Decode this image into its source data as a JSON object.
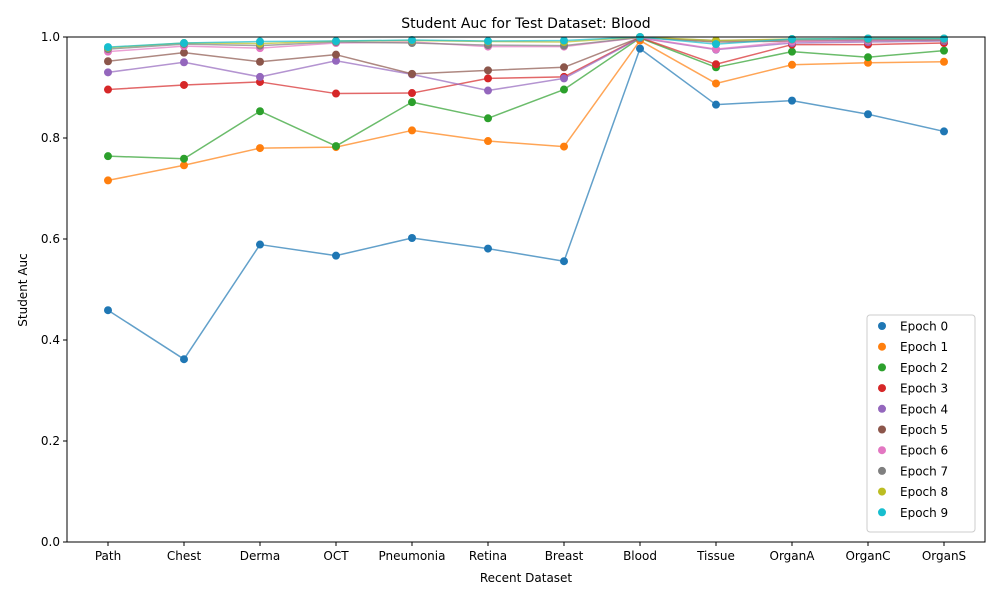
{
  "chart_data": {
    "type": "line",
    "title": "Student Auc for Test Dataset: Blood",
    "xlabel": "Recent Dataset",
    "ylabel": "Student Auc",
    "ylim": [
      0.0,
      1.0
    ],
    "yticks": [
      "0.0",
      "0.2",
      "0.4",
      "0.6",
      "0.8",
      "1.0"
    ],
    "categories": [
      "Path",
      "Chest",
      "Derma",
      "OCT",
      "Pneumonia",
      "Retina",
      "Breast",
      "Blood",
      "Tissue",
      "OrganA",
      "OrganC",
      "OrganS"
    ],
    "grid": false,
    "legend_position": "lower right",
    "series": [
      {
        "name": "Epoch 0",
        "color": "#1f77b4",
        "values": [
          0.459,
          0.362,
          0.589,
          0.567,
          0.602,
          0.581,
          0.556,
          0.977,
          0.866,
          0.874,
          0.847,
          0.813
        ]
      },
      {
        "name": "Epoch 1",
        "color": "#ff7f0e",
        "values": [
          0.716,
          0.746,
          0.78,
          0.782,
          0.815,
          0.794,
          0.783,
          0.993,
          0.908,
          0.945,
          0.949,
          0.951
        ]
      },
      {
        "name": "Epoch 2",
        "color": "#2ca02c",
        "values": [
          0.764,
          0.759,
          0.853,
          0.784,
          0.871,
          0.839,
          0.896,
          0.998,
          0.94,
          0.971,
          0.96,
          0.973
        ]
      },
      {
        "name": "Epoch 3",
        "color": "#d62728",
        "values": [
          0.896,
          0.905,
          0.911,
          0.888,
          0.889,
          0.918,
          0.921,
          0.999,
          0.946,
          0.985,
          0.985,
          0.988
        ]
      },
      {
        "name": "Epoch 4",
        "color": "#9467bd",
        "values": [
          0.93,
          0.95,
          0.921,
          0.953,
          0.926,
          0.894,
          0.918,
          0.998,
          0.975,
          0.988,
          0.99,
          0.992
        ]
      },
      {
        "name": "Epoch 5",
        "color": "#8c564b",
        "values": [
          0.952,
          0.969,
          0.951,
          0.965,
          0.927,
          0.934,
          0.94,
          0.999,
          0.99,
          0.992,
          0.993,
          0.994
        ]
      },
      {
        "name": "Epoch 6",
        "color": "#e377c2",
        "values": [
          0.971,
          0.982,
          0.978,
          0.988,
          0.99,
          0.981,
          0.981,
          0.999,
          0.976,
          0.991,
          0.993,
          0.995
        ]
      },
      {
        "name": "Epoch 7",
        "color": "#7f7f7f",
        "values": [
          0.976,
          0.986,
          0.983,
          0.99,
          0.988,
          0.984,
          0.983,
          0.999,
          0.993,
          0.995,
          0.995,
          0.996
        ]
      },
      {
        "name": "Epoch 8",
        "color": "#bcbd22",
        "values": [
          0.979,
          0.988,
          0.987,
          0.992,
          0.993,
          0.991,
          0.99,
          1.0,
          0.993,
          0.996,
          0.997,
          0.997
        ]
      },
      {
        "name": "Epoch 9",
        "color": "#17becf",
        "values": [
          0.98,
          0.988,
          0.991,
          0.992,
          0.994,
          0.992,
          0.993,
          1.0,
          0.986,
          0.996,
          0.997,
          0.997
        ]
      }
    ]
  }
}
